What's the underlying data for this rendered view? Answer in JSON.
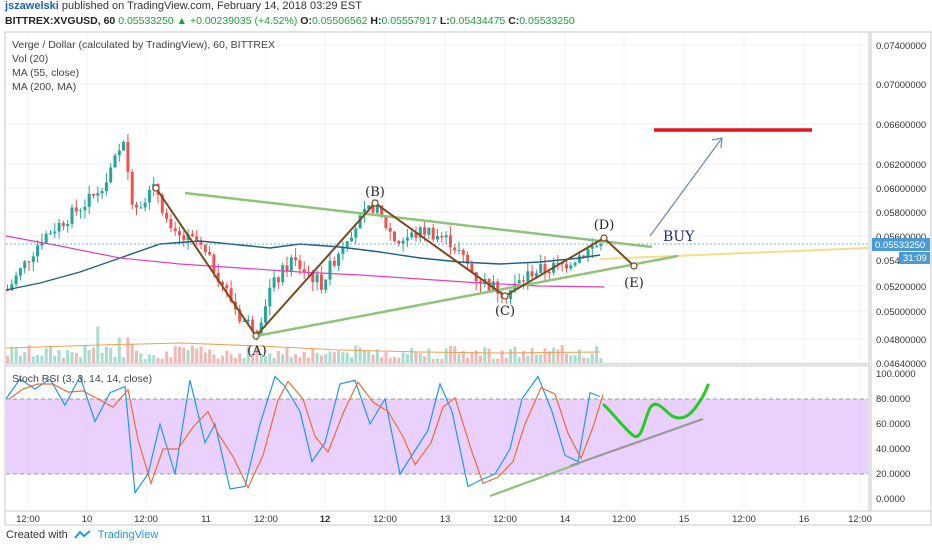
{
  "header": {
    "user": "jszawelski",
    "published_text": "published on TradingView.com, February 14, 2018 03:29 EST",
    "symbol_line": {
      "symbol": "BITTREX:XVGUSD, 60",
      "last": "0.05533250",
      "change": "+0.00239035 (+4.52%)",
      "o_label": "O:",
      "o": "0.05506562",
      "h_label": "H:",
      "h": "0.05557917",
      "l_label": "L:",
      "l": "0.05434475",
      "c_label": "C:",
      "c": "0.05533250"
    }
  },
  "legend": {
    "title": "Verge / Dollar (calculated by TradingView), 60, BITTREX",
    "vol": "Vol (20)",
    "ma55": "MA (55, close)",
    "ma200": "MA (200, MA)",
    "stoch": "Stoch RSI (3, 3, 14, 14, close)"
  },
  "price_axis": {
    "ticks": [
      "0.07400000",
      "0.07000000",
      "0.06600000",
      "0.06200000",
      "0.06000000",
      "0.05800000",
      "0.05600000",
      "0.05200000",
      "0.05000000",
      "0.04800000",
      "0.04640000"
    ],
    "current": "0.05533250",
    "countdown": "31:09",
    "partial_tick": "0.0540"
  },
  "rsi_axis": {
    "ticks": [
      "100.0000",
      "80.0000",
      "60.0000",
      "40.0000",
      "20.0000",
      "0.0000"
    ]
  },
  "time_axis": {
    "ticks": [
      "12:00",
      "10",
      "12:00",
      "11",
      "12:00",
      "12",
      "12:00",
      "13",
      "12:00",
      "14",
      "12:00",
      "15",
      "12:00",
      "16",
      "12:00"
    ]
  },
  "annotations": {
    "points": [
      "(A)",
      "(B)",
      "(C)",
      "(D)",
      "(E)"
    ],
    "buy": "BUY"
  },
  "footer": {
    "created_with": "Created with",
    "brand": "TradingView"
  },
  "colors": {
    "up": "#26a69a",
    "down": "#ef5350",
    "wave": "#7a4a1e",
    "triangle": "#8fc27a",
    "ma55": "#1f5f8b",
    "ma200": "#e040c0",
    "target": "#e5141b",
    "arrow": "#6f8cc8",
    "rsi_k": "#2196f3",
    "rsi_d": "#ef6c34",
    "rsi_band": "#e6c8fb",
    "green_marker": "#22cc22"
  },
  "chart_data": {
    "type": "candlestick",
    "symbol": "BITTREX:XVGUSD",
    "interval": "60",
    "y_range": [
      0.0464,
      0.0748
    ],
    "wave_points": [
      {
        "label": "(A)",
        "price": 0.0484
      },
      {
        "label": "(B)",
        "price": 0.059
      },
      {
        "label": "(C)",
        "price": 0.0512
      },
      {
        "label": "(D)",
        "price": 0.0559
      },
      {
        "label": "(E)",
        "price": 0.0534
      }
    ],
    "target_price": 0.0655,
    "last_price": 0.0553325,
    "stoch_rsi_range": [
      0,
      100
    ],
    "stoch_rsi_bands": [
      20,
      80
    ]
  }
}
